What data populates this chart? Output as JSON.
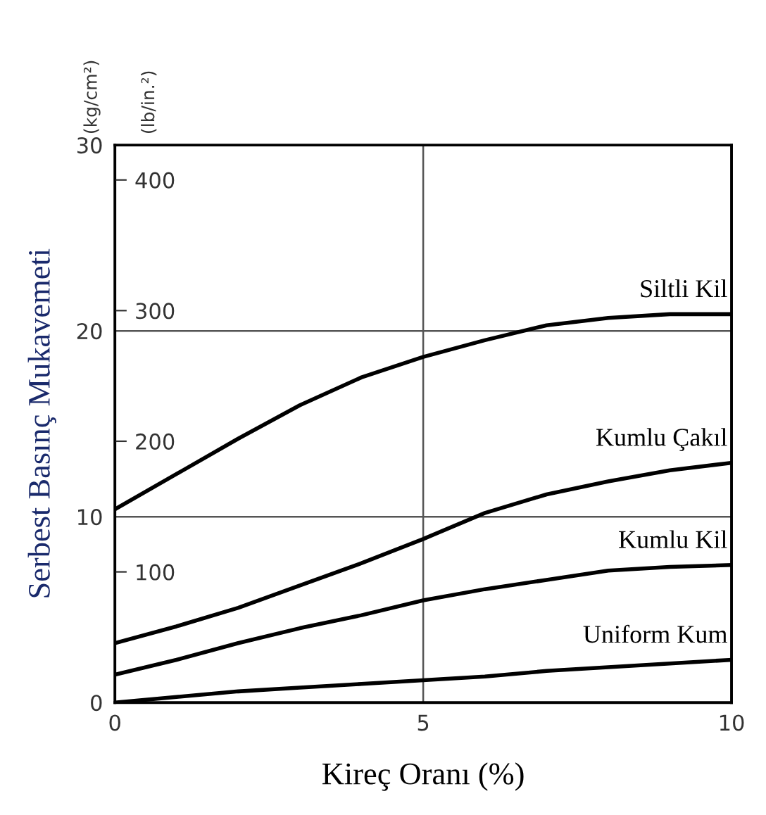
{
  "chart_data": {
    "type": "line",
    "xlabel": "Kireç Oranı (%)",
    "ylabel": "Serbest Basınç Mukavemeti",
    "y2label": "(lb/in.²)",
    "annotations": [
      "(kg/cm²)"
    ],
    "x": [
      0,
      1,
      2,
      3,
      4,
      5,
      6,
      7,
      8,
      9,
      10
    ],
    "series": [
      {
        "name": "Siltli Kil",
        "color": "#000000",
        "values": [
          10.4,
          12.3,
          14.2,
          16.0,
          17.5,
          18.6,
          19.5,
          20.3,
          20.7,
          20.9,
          20.9
        ]
      },
      {
        "name": "Kumlu Çakıl",
        "color": "#000000",
        "values": [
          3.2,
          4.1,
          5.1,
          6.3,
          7.5,
          8.8,
          10.2,
          11.2,
          11.9,
          12.5,
          12.9
        ]
      },
      {
        "name": "Kumlu Kil",
        "color": "#000000",
        "values": [
          1.5,
          2.3,
          3.2,
          4.0,
          4.7,
          5.5,
          6.1,
          6.6,
          7.1,
          7.3,
          7.4
        ]
      },
      {
        "name": "Uniform Kum",
        "color": "#000000",
        "values": [
          0,
          0.3,
          0.6,
          0.8,
          1.0,
          1.2,
          1.4,
          1.7,
          1.9,
          2.1,
          2.3
        ]
      }
    ],
    "xlim": [
      0,
      10
    ],
    "xticks": [
      0,
      5,
      10
    ],
    "ylim": [
      0,
      30
    ],
    "yticks": [
      0,
      10,
      20,
      30
    ],
    "y2lim": [
      0,
      426.7
    ],
    "y2ticks": [
      100,
      200,
      300,
      400
    ],
    "grid": true,
    "legend": false,
    "marker": "none",
    "line_style": "solid"
  }
}
